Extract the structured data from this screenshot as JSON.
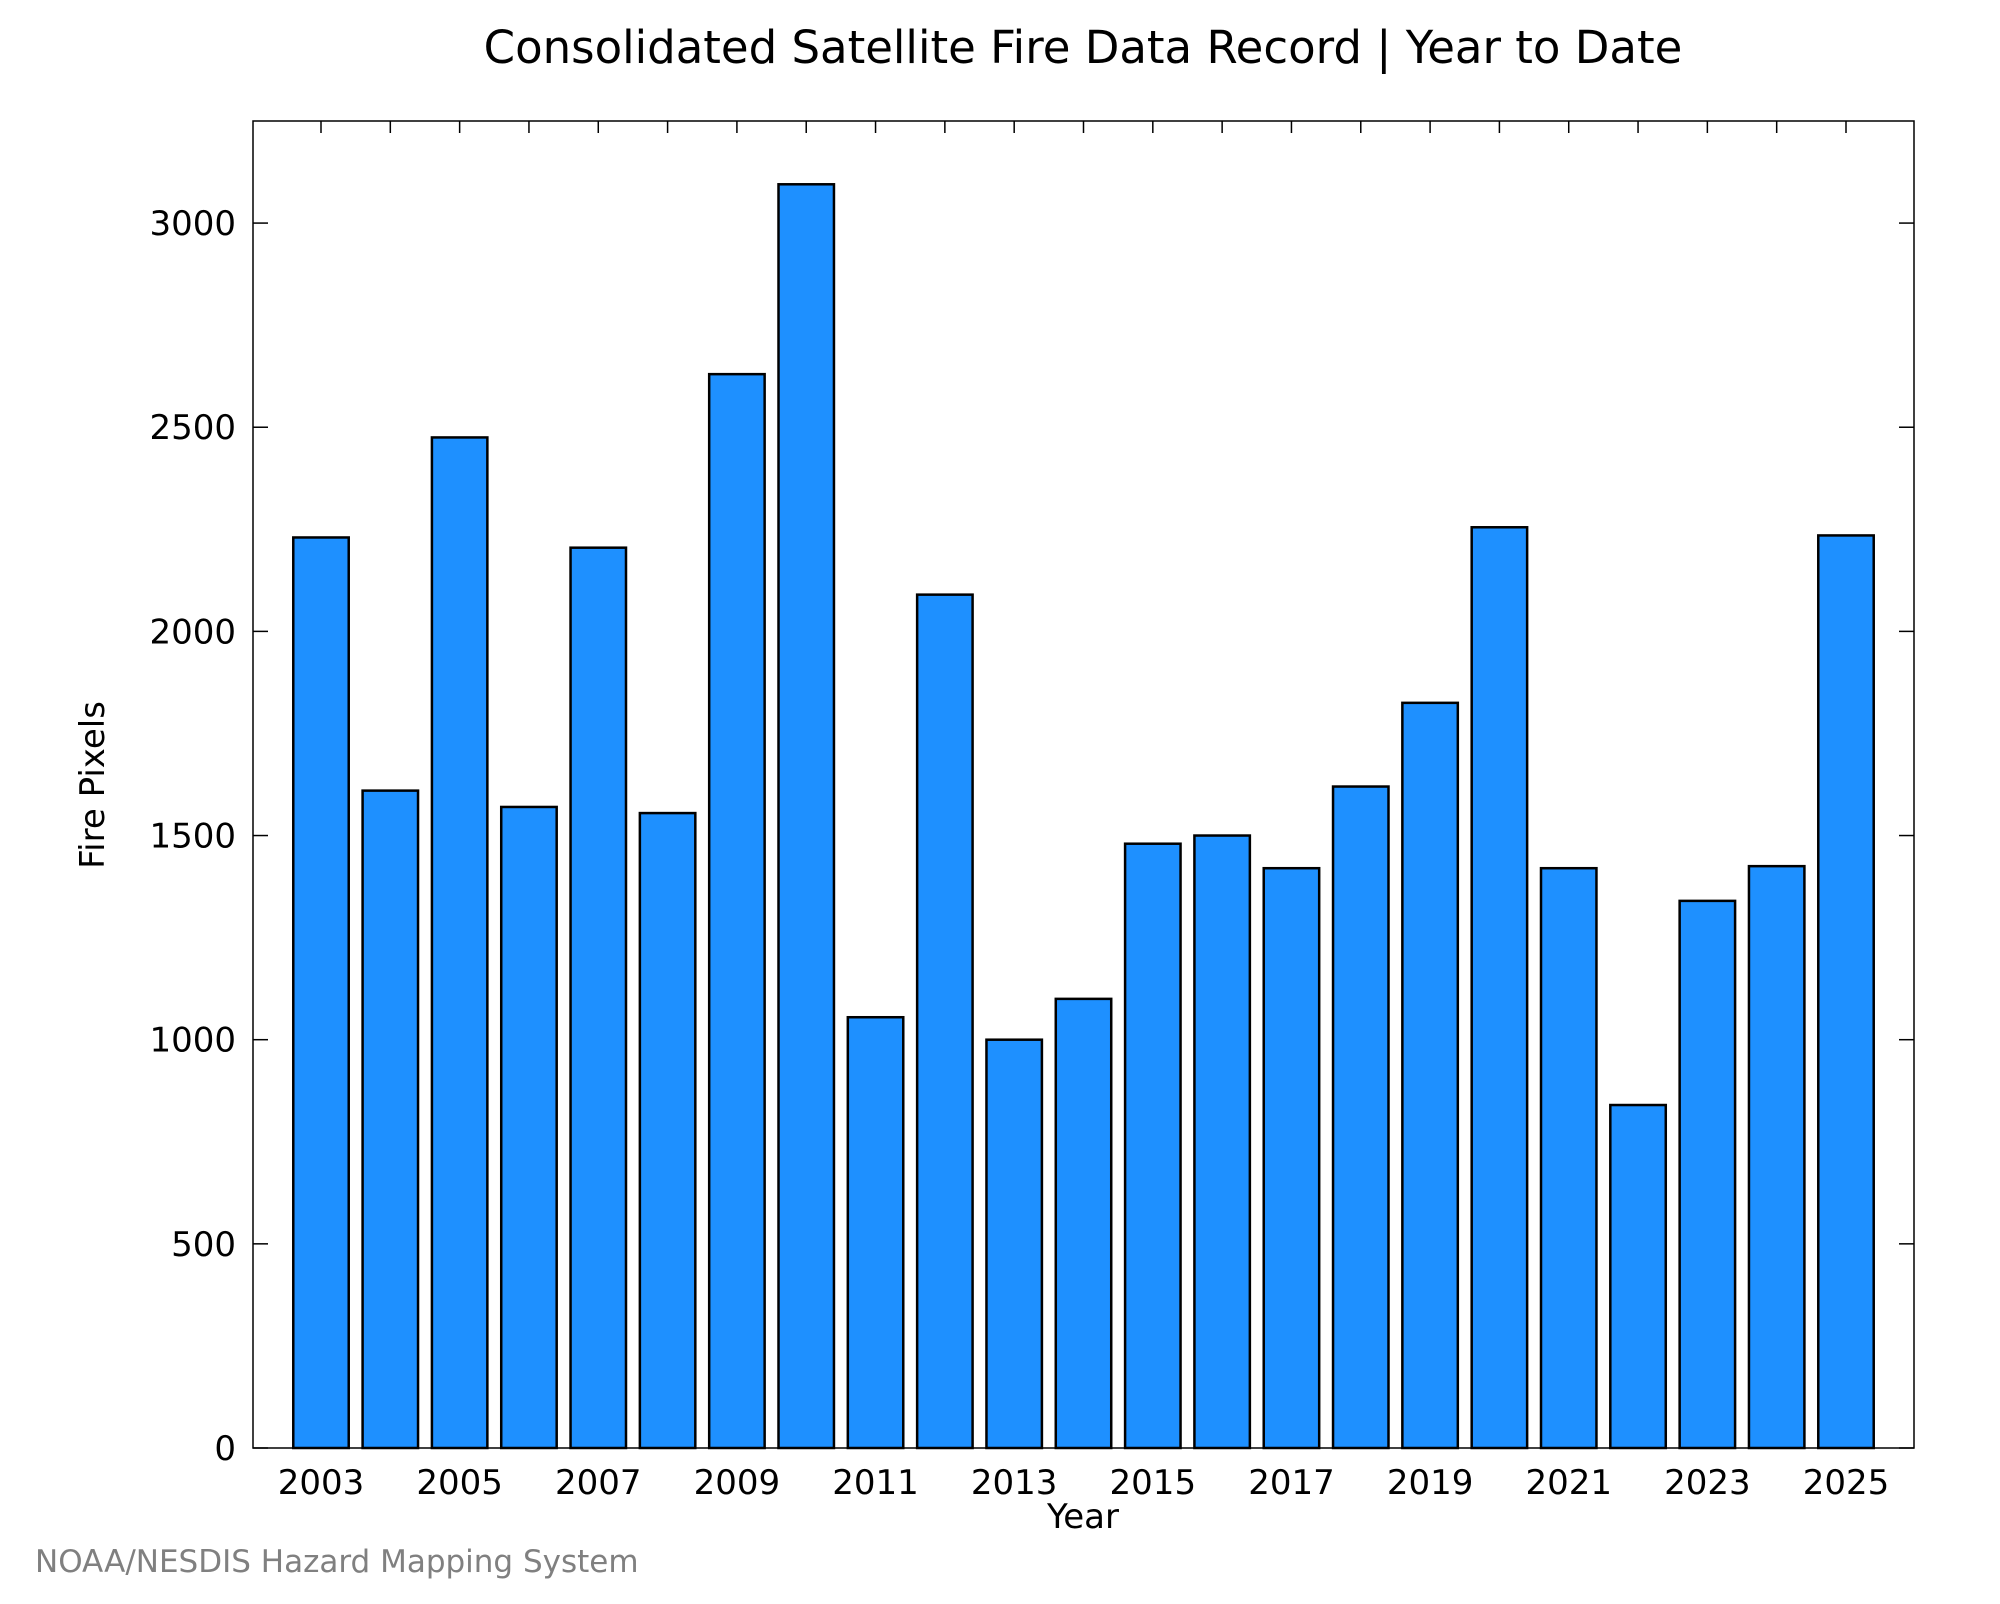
{
  "chart_data": {
    "type": "bar",
    "title": "Consolidated Satellite Fire Data Record | Year to Date",
    "xlabel": "Year",
    "ylabel": "Fire Pixels",
    "ylim": [
      0,
      3250
    ],
    "yticks": [
      0,
      500,
      1000,
      1500,
      2000,
      2500,
      3000
    ],
    "xtick_labels": [
      "2003",
      "2005",
      "2007",
      "2009",
      "2011",
      "2013",
      "2015",
      "2017",
      "2019",
      "2021",
      "2023",
      "2025"
    ],
    "categories": [
      "2003",
      "2004",
      "2005",
      "2006",
      "2007",
      "2008",
      "2009",
      "2010",
      "2011",
      "2012",
      "2013",
      "2014",
      "2015",
      "2016",
      "2017",
      "2018",
      "2019",
      "2020",
      "2021",
      "2022",
      "2023",
      "2024",
      "2025"
    ],
    "values": [
      2230,
      1610,
      2475,
      1570,
      2205,
      1555,
      2630,
      3095,
      1055,
      2090,
      1000,
      1100,
      1480,
      1500,
      1420,
      1620,
      1825,
      2255,
      1420,
      840,
      1340,
      1425,
      2235
    ],
    "bar_color": "#1e90ff",
    "grid": false,
    "legend": "none"
  },
  "source_note": "NOAA/NESDIS Hazard Mapping System"
}
